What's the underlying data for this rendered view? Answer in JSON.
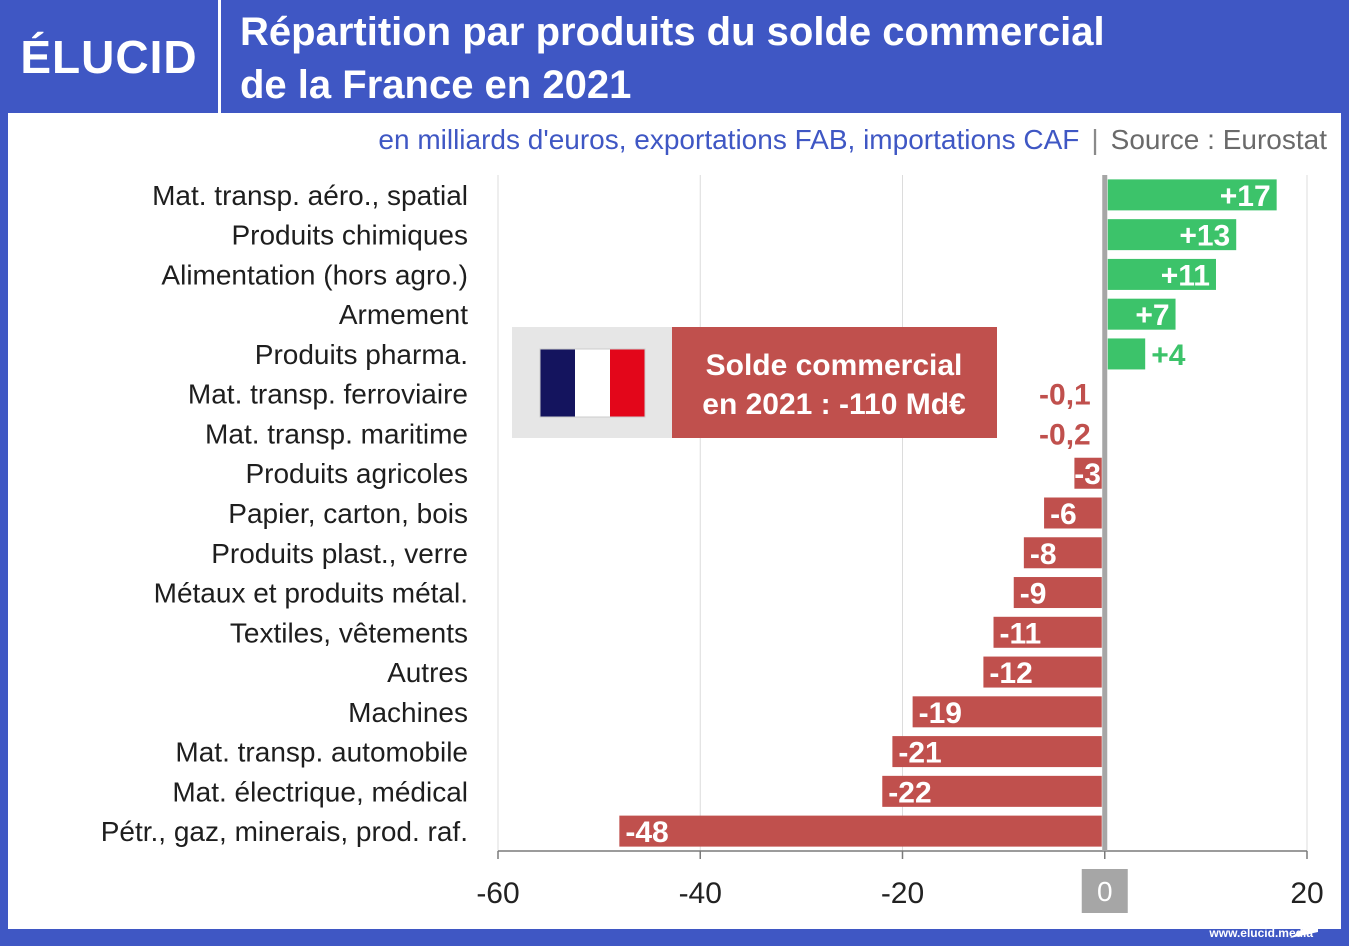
{
  "header": {
    "logo": "ÉLUCID",
    "title_line1": "Répartition par produits du solde commercial",
    "title_line2": "de la France en 2021",
    "subtitle_units": "en milliards d'euros, exportations FAB, importations CAF",
    "subtitle_sep": "|",
    "subtitle_source": "Source : Eurostat"
  },
  "callout": {
    "line1": "Solde commercial",
    "line2": "en 2021 : -110 Md€",
    "flag_icon": "france-flag-icon"
  },
  "footer": {
    "url": "www.elucid.media"
  },
  "colors": {
    "positive": "#3cc36a",
    "negative": "#c0504d",
    "brand": "#3f57c4",
    "zero_line": "#a6a6a6"
  },
  "chart_data": {
    "type": "bar",
    "orientation": "horizontal",
    "categories": [
      "Mat. transp. aéro., spatial",
      "Produits chimiques",
      "Alimentation (hors agro.)",
      "Armement",
      "Produits pharma.",
      "Mat. transp. ferroviaire",
      "Mat. transp. maritime",
      "Produits agricoles",
      "Papier, carton, bois",
      "Produits plast., verre",
      "Métaux et produits métal.",
      "Textiles, vêtements",
      "Autres",
      "Machines",
      "Mat. transp. automobile",
      "Mat.  électrique, médical",
      "Pétr., gaz, minerais, prod. raf."
    ],
    "values": [
      17,
      13,
      11,
      7,
      4,
      -0.1,
      -0.2,
      -3,
      -6,
      -8,
      -9,
      -11,
      -12,
      -19,
      -21,
      -22,
      -48
    ],
    "labels": [
      "+17",
      "+13",
      "+11",
      "+7",
      "+4",
      "-0,1",
      "-0,2",
      "-3",
      "-6",
      "-8",
      "-9",
      "-11",
      "-12",
      "-19",
      "-21",
      "-22",
      "-48"
    ],
    "xlim": [
      -60,
      20
    ],
    "xticks": [
      "-60",
      "-40",
      "-20",
      "0",
      "20"
    ],
    "xtick_values": [
      -60,
      -40,
      -20,
      0,
      20
    ],
    "grid": "vertical"
  }
}
